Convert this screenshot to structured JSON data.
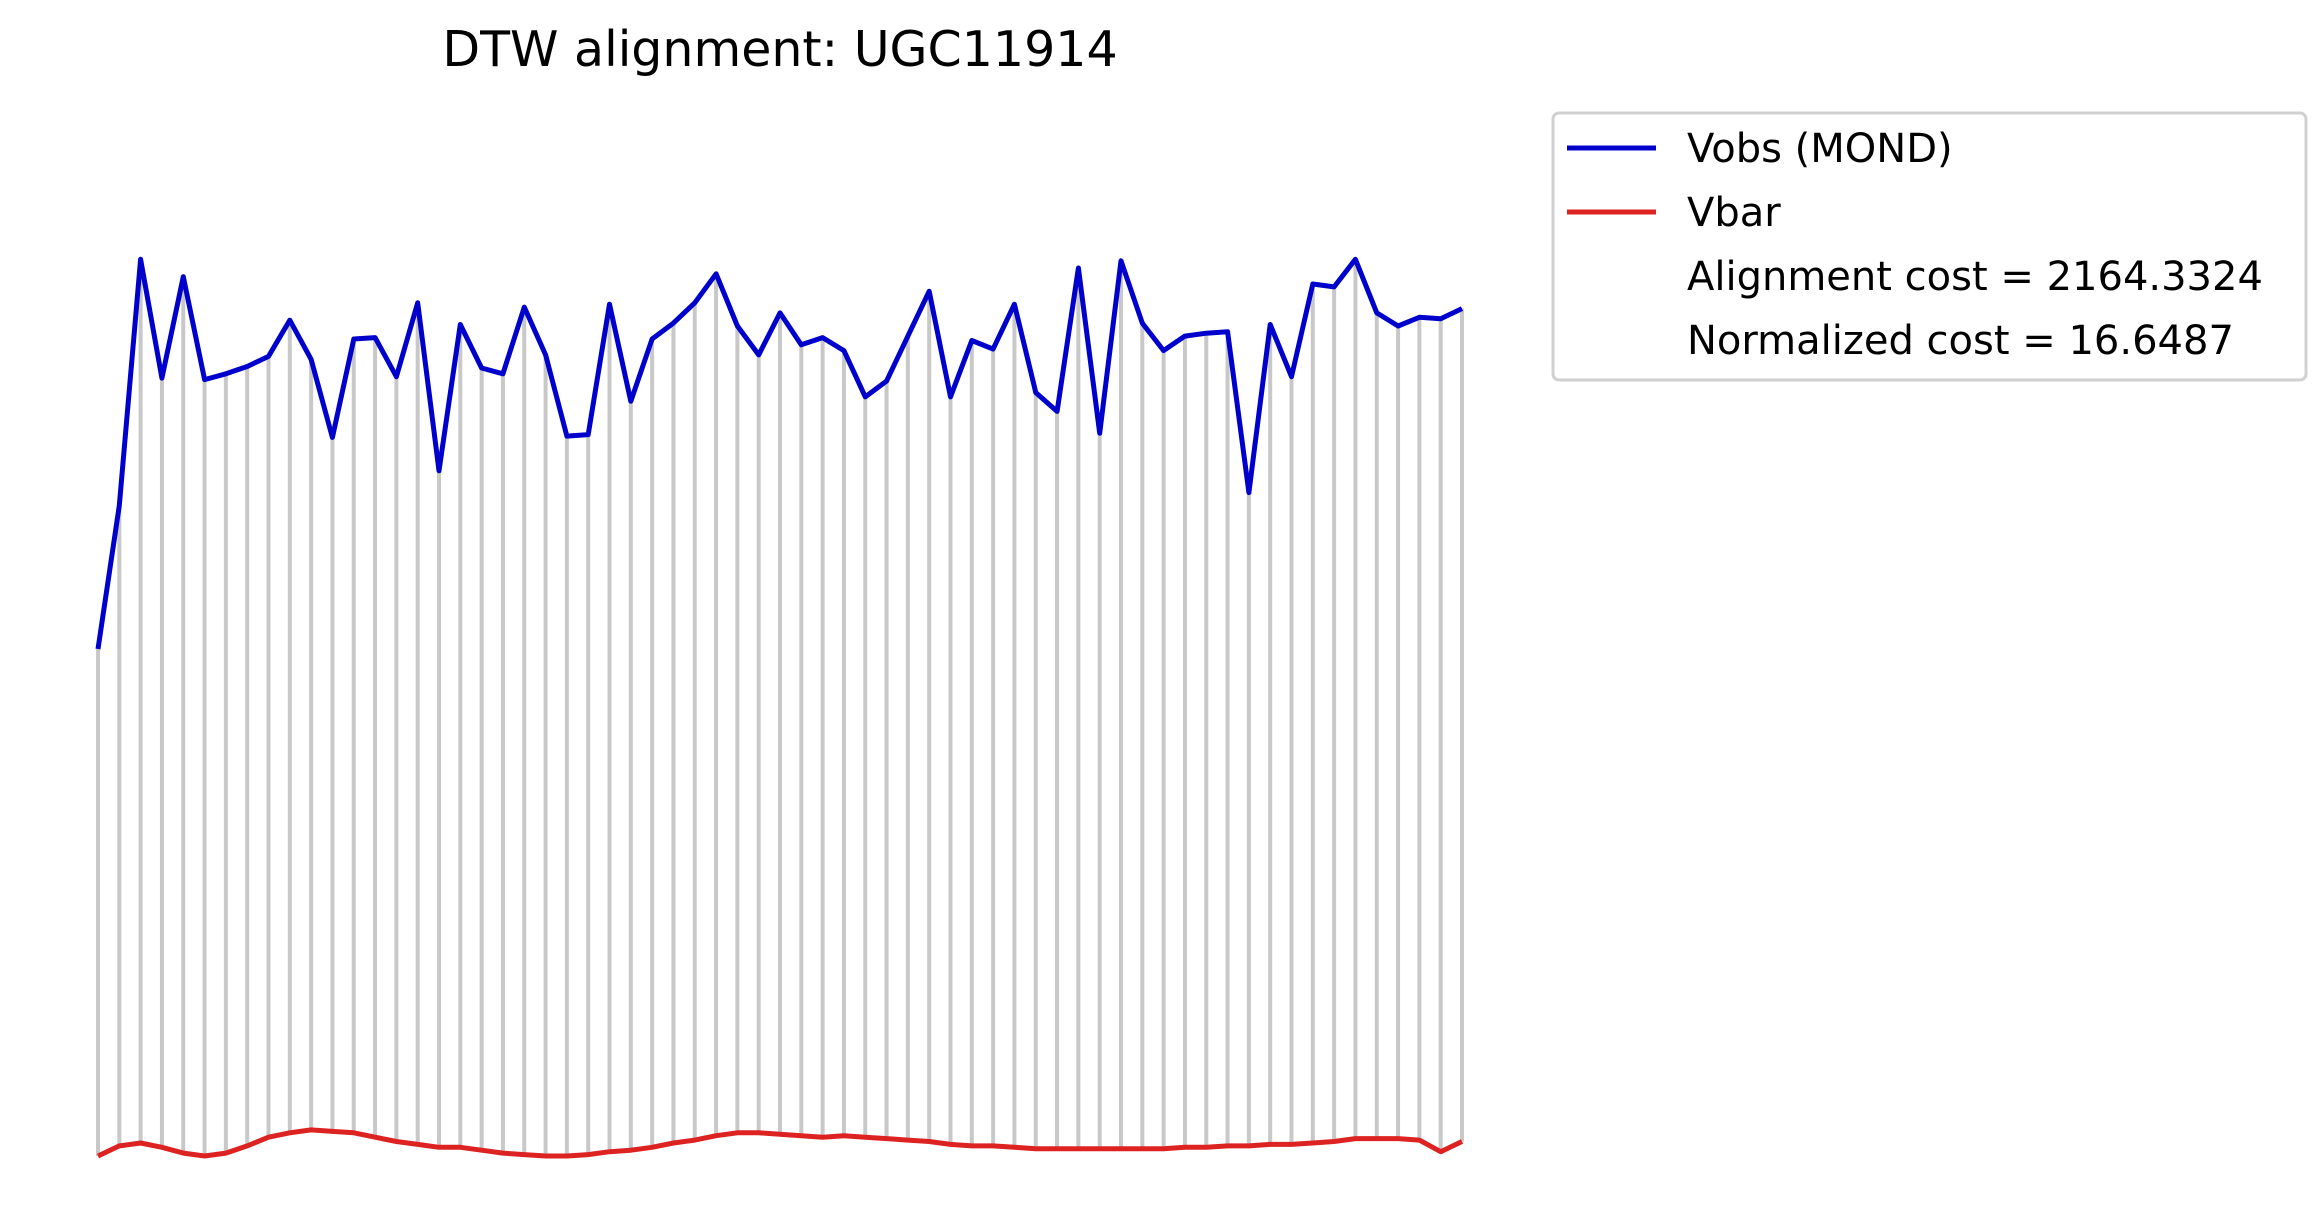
{
  "chart_data": {
    "type": "line",
    "title": "DTW alignment: UGC11914",
    "xlabel": "",
    "ylabel": "",
    "axes_visible": false,
    "grid": false,
    "ylim": [
      0,
      70
    ],
    "legend_position": "outside-top-right",
    "alignment_connectors": "vertical gray lines joining each matched Vobs (MOND) and Vbar point",
    "series": [
      {
        "name": "Vobs (MOND)",
        "color": "#0000cc",
        "values": [
          35.0,
          44.9,
          61.9,
          53.7,
          60.7,
          53.6,
          54.0,
          54.5,
          55.2,
          57.7,
          55.0,
          49.6,
          56.4,
          56.5,
          53.8,
          58.9,
          47.3,
          57.4,
          54.4,
          54.0,
          58.6,
          55.3,
          49.7,
          49.8,
          58.8,
          52.1,
          56.4,
          57.5,
          58.9,
          60.9,
          57.3,
          55.3,
          58.2,
          56.0,
          56.5,
          55.6,
          52.4,
          53.5,
          56.6,
          59.7,
          52.4,
          56.3,
          55.7,
          58.8,
          52.7,
          51.4,
          61.3,
          49.9,
          61.8,
          57.5,
          55.6,
          56.6,
          56.8,
          56.9,
          45.8,
          57.4,
          53.8,
          60.2,
          60.0,
          61.9,
          58.2,
          57.3,
          57.9,
          57.8,
          58.5
        ]
      },
      {
        "name": "Vbar",
        "color": "#dd2222",
        "values": [
          0.0,
          0.7,
          0.9,
          0.6,
          0.2,
          0.0,
          0.2,
          0.7,
          1.3,
          1.6,
          1.8,
          1.7,
          1.6,
          1.3,
          1.0,
          0.8,
          0.6,
          0.6,
          0.4,
          0.2,
          0.1,
          0.0,
          0.0,
          0.1,
          0.3,
          0.4,
          0.6,
          0.9,
          1.1,
          1.4,
          1.6,
          1.6,
          1.5,
          1.4,
          1.3,
          1.4,
          1.3,
          1.2,
          1.1,
          1.0,
          0.8,
          0.7,
          0.7,
          0.6,
          0.5,
          0.5,
          0.5,
          0.5,
          0.5,
          0.5,
          0.5,
          0.6,
          0.6,
          0.7,
          0.7,
          0.8,
          0.8,
          0.9,
          1.0,
          1.2,
          1.2,
          1.2,
          1.1,
          0.3,
          1.0
        ]
      }
    ],
    "annotations": [
      "Alignment cost = 2164.3324",
      "Normalized cost = 16.6487"
    ]
  }
}
